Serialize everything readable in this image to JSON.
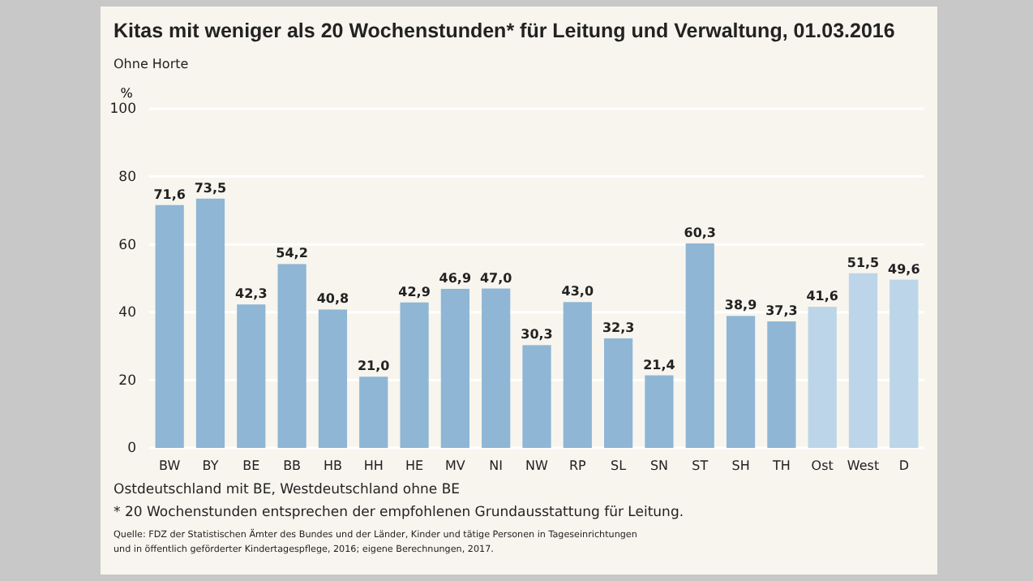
{
  "chart_data": {
    "type": "bar",
    "title": "Kitas mit weniger als 20 Wochenstunden* für Leitung und Verwaltung, 01.03.2016",
    "subtitle": "Ohne Horte",
    "ylabel": "%",
    "categories": [
      "BW",
      "BY",
      "BE",
      "BB",
      "HB",
      "HH",
      "HE",
      "MV",
      "NI",
      "NW",
      "RP",
      "SL",
      "SN",
      "ST",
      "SH",
      "TH",
      "Ost",
      "West",
      "D"
    ],
    "values": [
      71.6,
      73.5,
      42.3,
      54.2,
      40.8,
      21.0,
      42.9,
      46.9,
      47.0,
      30.3,
      43.0,
      32.3,
      21.4,
      60.3,
      38.9,
      37.3,
      41.6,
      51.5,
      49.6
    ],
    "value_labels": [
      "71,6",
      "73,5",
      "42,3",
      "54,2",
      "40,8",
      "21,0",
      "42,9",
      "46,9",
      "47,0",
      "30,3",
      "43,0",
      "32,3",
      "21,4",
      "60,3",
      "38,9",
      "37,3",
      "41,6",
      "51,5",
      "49,6"
    ],
    "colors": [
      "#8fb6d4",
      "#8fb6d4",
      "#8fb6d4",
      "#8fb6d4",
      "#8fb6d4",
      "#8fb6d4",
      "#8fb6d4",
      "#8fb6d4",
      "#8fb6d4",
      "#8fb6d4",
      "#8fb6d4",
      "#8fb6d4",
      "#8fb6d4",
      "#8fb6d4",
      "#8fb6d4",
      "#8fb6d4",
      "#bcd5e8",
      "#bcd5e8",
      "#bcd5e8"
    ],
    "ylim": [
      0,
      100
    ],
    "yticks": [
      0,
      20,
      40,
      60,
      80,
      100
    ],
    "grid": "y",
    "annotations": [
      "Ostdeutschland mit BE, Westdeutschland ohne BE",
      "* 20 Wochenstunden entsprechen der empfohlenen Grundausstattung für Leitung.",
      "Quelle: FDZ der Statistischen Ämter des Bundes und der Länder, Kinder und tätige Personen in Tageseinrichtungen",
      "und in öffentlich geförderter Kindertagespflege, 2016; eigene Berechnungen, 2017."
    ]
  }
}
